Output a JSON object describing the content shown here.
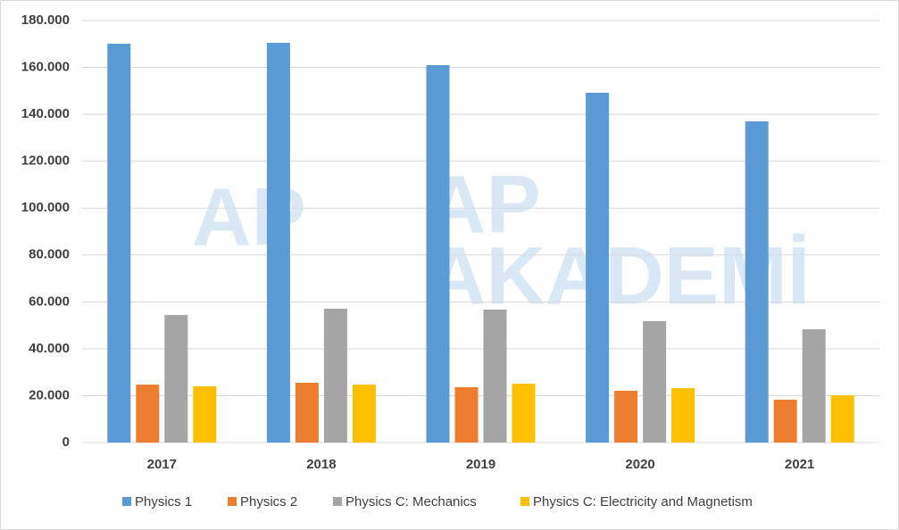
{
  "chart_data": {
    "type": "bar",
    "categories": [
      "2017",
      "2018",
      "2019",
      "2020",
      "2021"
    ],
    "series": [
      {
        "name": "Physics 1",
        "color": "#5b9bd5",
        "values": [
          170100,
          170500,
          161000,
          149200,
          137000
        ]
      },
      {
        "name": "Physics 2",
        "color": "#ed7d31",
        "values": [
          24700,
          25500,
          23600,
          22100,
          18300
        ]
      },
      {
        "name": "Physics C: Mechanics",
        "color": "#a5a5a5",
        "values": [
          54400,
          57100,
          56700,
          51800,
          48300
        ]
      },
      {
        "name": "Physics C: Electricity and Magnetism",
        "color": "#ffc000",
        "values": [
          24000,
          24700,
          25100,
          23200,
          20200
        ]
      }
    ],
    "ylim": [
      0,
      180000
    ],
    "yticks": [
      0,
      {
        "value": 20000,
        "label": "20.000"
      },
      {
        "value": 40000,
        "label": "40.000"
      },
      {
        "value": 60000,
        "label": "60.000"
      },
      {
        "value": 80000,
        "label": "80.000"
      },
      {
        "value": 100000,
        "label": "100.000"
      },
      {
        "value": 120000,
        "label": "120.000"
      },
      {
        "value": 140000,
        "label": "140.000"
      },
      {
        "value": 160000,
        "label": "160.000"
      },
      {
        "value": 180000,
        "label": "180.000"
      }
    ],
    "grid": true,
    "legend": "bottom",
    "watermark": [
      "AP",
      "AKADEMİ"
    ]
  }
}
